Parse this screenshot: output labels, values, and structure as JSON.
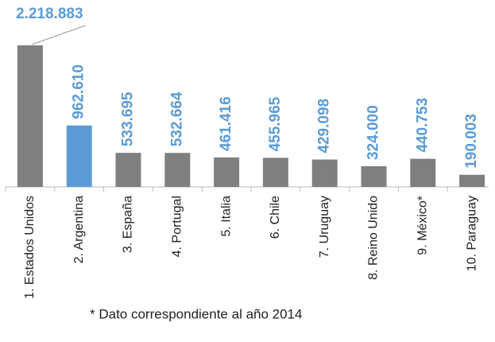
{
  "chart_data": {
    "type": "bar",
    "categories": [
      "1. Estados Unidos",
      "2. Argentina",
      "3. España",
      "4. Portugal",
      "5. Italia",
      "6. Chile",
      "7. Uruguay",
      "8. Reino Unido",
      "9. México*",
      "10. Paraguay"
    ],
    "values": [
      2218883,
      962610,
      533695,
      532664,
      461416,
      455965,
      429098,
      324000,
      440753,
      190003
    ],
    "value_labels": [
      "2.218.883",
      "962.610",
      "533.695",
      "532.664",
      "461.416",
      "455.965",
      "429.098",
      "324.000",
      "440.753",
      "190.003"
    ],
    "colors": [
      "#7f7f7f",
      "#5b9bd5",
      "#7f7f7f",
      "#7f7f7f",
      "#7f7f7f",
      "#7f7f7f",
      "#7f7f7f",
      "#7f7f7f",
      "#7f7f7f",
      "#7f7f7f"
    ],
    "label_color": "#5b9bd5",
    "footnote": "* Dato correspondiente al año 2014"
  }
}
